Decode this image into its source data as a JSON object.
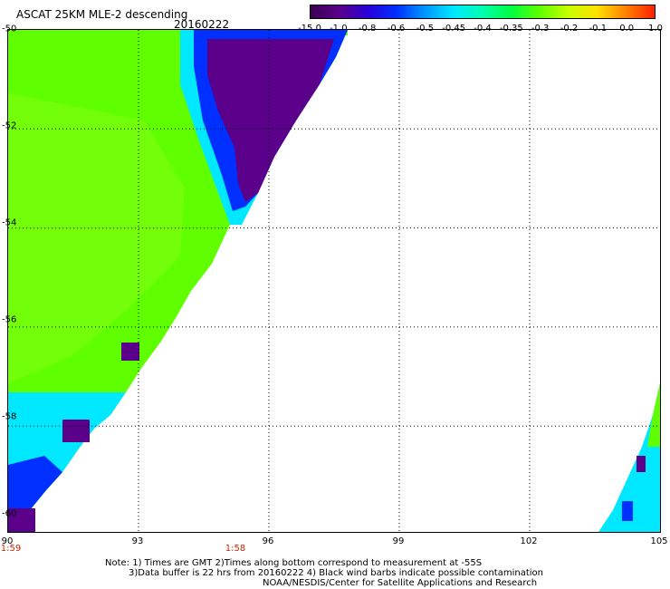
{
  "header": {
    "title": "ASCAT 25KM MLE-2 descending",
    "date": "20160222"
  },
  "colorbar": {
    "labels": [
      "-15.0",
      "-1.0",
      "-0.8",
      "-0.6",
      "-0.5",
      "-0.45",
      "-0.4",
      "-0.35",
      "-0.3",
      "-0.2",
      "-0.1",
      "0.0",
      "1.0"
    ],
    "colors": [
      "#3a0050",
      "#5a008a",
      "#2a00d8",
      "#0030ff",
      "#0098ff",
      "#00e8ff",
      "#00ffb0",
      "#00ff40",
      "#60ff00",
      "#c8ff00",
      "#ffe000",
      "#ff8000",
      "#ff2000"
    ]
  },
  "axes": {
    "lat_labels": [
      "-50",
      "-52",
      "-54",
      "-56",
      "-58",
      "-60"
    ],
    "lon_labels": [
      "90",
      "93",
      "96",
      "99",
      "102",
      "105"
    ],
    "time_labels": [
      "1:59",
      "1:58"
    ]
  },
  "notes": [
    "Note: 1) Times are GMT 2)Times along bottom correspond to measurement at -55S",
    "3)Data buffer is 22 hrs from 20160222 4) Black wind barbs indicate possible contamination",
    "NOAA/NESDIS/Center for Satellite Applications and Research"
  ]
}
